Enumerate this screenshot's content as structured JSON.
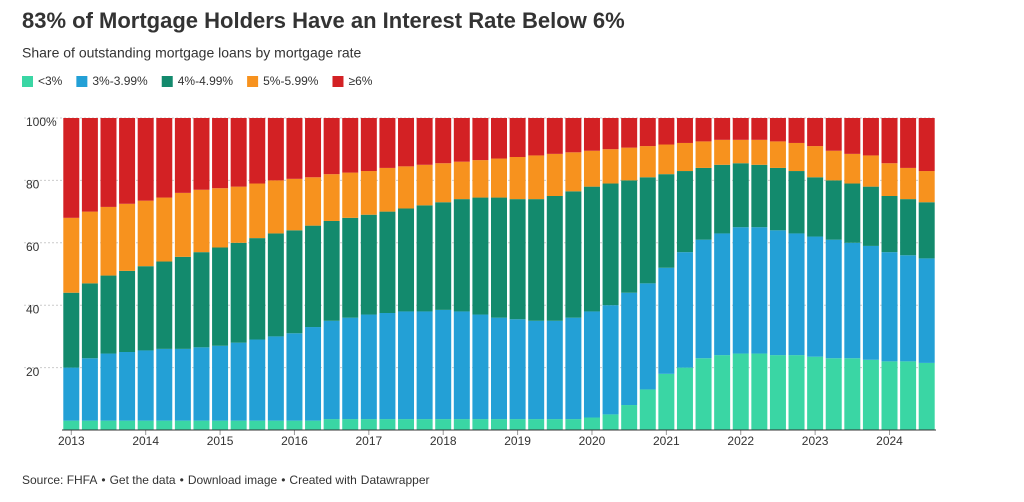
{
  "chart_data": {
    "type": "stacked_bar",
    "title": "83% of Mortgage Holders Have an Interest Rate Below 6%",
    "subtitle": "Share of outstanding mortgage loans by mortgage rate",
    "categories": [
      "2013",
      null,
      null,
      null,
      "2014",
      null,
      null,
      null,
      "2015",
      null,
      null,
      null,
      "2016",
      null,
      null,
      null,
      "2017",
      null,
      null,
      null,
      "2018",
      null,
      null,
      null,
      "2019",
      null,
      null,
      null,
      "2020",
      null,
      null,
      null,
      "2021",
      null,
      null,
      null,
      "2022",
      null,
      null,
      null,
      "2023",
      null,
      null,
      null,
      "2024",
      null,
      null
    ],
    "series": [
      {
        "name": "<3%",
        "color": "#3ad6a4",
        "values": [
          3,
          3,
          3,
          3,
          3,
          3,
          3,
          3,
          3,
          3,
          3,
          3,
          3,
          3,
          3.5,
          3.5,
          3.5,
          3.5,
          3.5,
          3.5,
          3.5,
          3.5,
          3.5,
          3.5,
          3.5,
          3.5,
          3.5,
          3.5,
          4,
          5,
          8,
          13,
          18,
          20,
          23,
          24,
          24.5,
          24.5,
          24,
          24,
          23.5,
          23,
          23,
          22.5,
          22,
          22,
          21.5
        ]
      },
      {
        "name": "3%-3.99%",
        "color": "#23a0d6",
        "values": [
          17,
          20,
          21.5,
          22,
          22.5,
          23,
          23,
          23.5,
          24,
          25,
          26,
          27,
          28,
          30,
          31.5,
          32.5,
          33.5,
          34,
          34.5,
          34.5,
          35,
          34.5,
          33.5,
          32.5,
          32,
          31.5,
          31.5,
          32.5,
          34,
          35,
          36,
          34,
          34,
          37,
          38,
          39,
          40.5,
          40.5,
          40,
          39,
          38.5,
          38,
          37,
          36.5,
          35,
          34,
          33.5
        ]
      },
      {
        "name": "4%-4.99%",
        "color": "#138a6d",
        "values": [
          24,
          24,
          25,
          26,
          27,
          28,
          29.5,
          30.5,
          31.5,
          32,
          32.5,
          33,
          33,
          32.5,
          32,
          32,
          32,
          32.5,
          33,
          34,
          34.5,
          36,
          37.5,
          38.5,
          38.5,
          39,
          40,
          40.5,
          40,
          39,
          36,
          34,
          30,
          26,
          23,
          22,
          20.5,
          20,
          20,
          20,
          19,
          19,
          19,
          19,
          18,
          18,
          18
        ]
      },
      {
        "name": "5%-5.99%",
        "color": "#f7921e",
        "values": [
          24,
          23,
          22,
          21.5,
          21,
          20.5,
          20.5,
          20,
          19,
          18,
          17.5,
          17,
          16.5,
          15.5,
          15,
          14.5,
          14,
          14,
          13.5,
          13,
          12.5,
          12,
          12,
          12.5,
          13.5,
          14,
          13.5,
          12.5,
          11.5,
          11,
          10.5,
          10,
          9.5,
          9,
          8.5,
          8,
          7.5,
          8,
          8.5,
          9,
          10,
          9.5,
          9.5,
          10,
          10.5,
          10,
          10
        ]
      },
      {
        "name": "≥6%",
        "color": "#d32124",
        "values": [
          32,
          30,
          28.5,
          27.5,
          26.5,
          25.5,
          24,
          23,
          22.5,
          22,
          21,
          20,
          19.5,
          19,
          18,
          17.5,
          17,
          16,
          15.5,
          15,
          14.5,
          14,
          13.5,
          13,
          12.5,
          12,
          11.5,
          11,
          10.5,
          10,
          9.5,
          9,
          8.5,
          8,
          7.5,
          7,
          7,
          7,
          7.5,
          8,
          9,
          10.5,
          11.5,
          12,
          14.5,
          16,
          17
        ]
      }
    ],
    "ylim": [
      0,
      100
    ],
    "yticks": [
      20,
      40,
      60,
      80,
      {
        "value": 100,
        "label": "100%"
      }
    ],
    "grid": true,
    "footer": [
      "Source: FHFA",
      "•",
      "Get the data",
      "•",
      "Download image",
      "•",
      "Created with",
      "Datawrapper"
    ]
  }
}
